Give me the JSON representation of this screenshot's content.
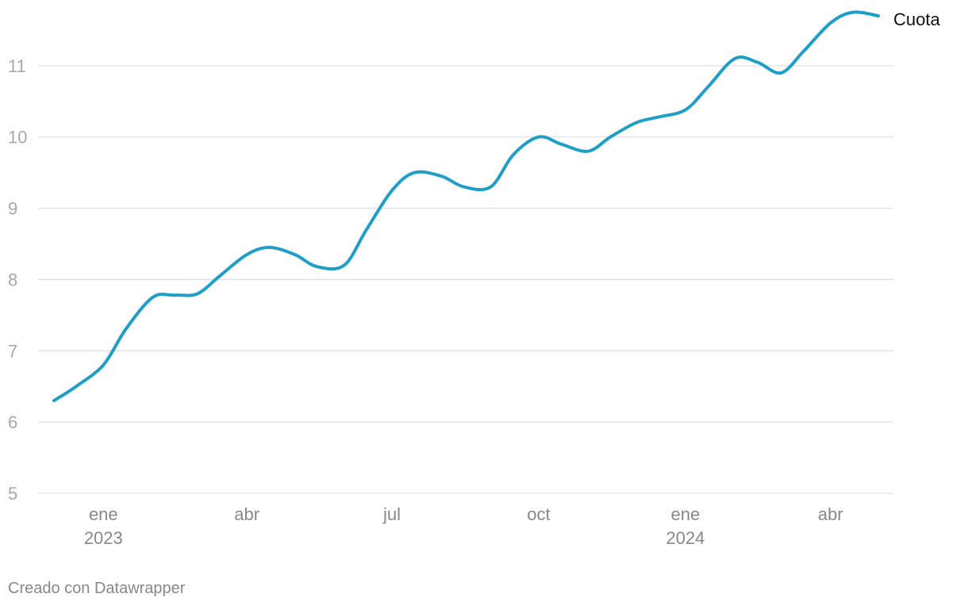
{
  "chart_data": {
    "type": "line",
    "x": [
      "2022-12-01",
      "2022-12-15",
      "2023-01-01",
      "2023-01-15",
      "2023-02-01",
      "2023-02-15",
      "2023-03-01",
      "2023-03-15",
      "2023-04-01",
      "2023-04-15",
      "2023-05-01",
      "2023-05-15",
      "2023-06-01",
      "2023-06-15",
      "2023-07-01",
      "2023-07-15",
      "2023-08-01",
      "2023-08-15",
      "2023-09-01",
      "2023-09-15",
      "2023-10-01",
      "2023-10-15",
      "2023-11-01",
      "2023-11-15",
      "2023-12-01",
      "2023-12-15",
      "2024-01-01",
      "2024-01-15",
      "2024-02-01",
      "2024-02-15",
      "2024-03-01",
      "2024-03-15",
      "2024-04-01",
      "2024-04-15",
      "2024-05-01"
    ],
    "series": [
      {
        "name": "Cuota",
        "values": [
          6.3,
          6.5,
          6.8,
          7.3,
          7.75,
          7.78,
          7.8,
          8.05,
          8.35,
          8.45,
          8.35,
          8.18,
          8.2,
          8.7,
          9.25,
          9.5,
          9.45,
          9.3,
          9.3,
          9.75,
          10.0,
          9.9,
          9.8,
          10.0,
          10.2,
          10.28,
          10.38,
          10.7,
          11.1,
          11.05,
          10.9,
          11.2,
          11.6,
          11.75,
          11.7
        ]
      }
    ],
    "ylim": [
      5,
      11.7
    ],
    "yticks": [
      5,
      6,
      7,
      8,
      9,
      10,
      11
    ],
    "xticks": [
      {
        "date": "2023-01-01",
        "label": "ene",
        "year": "2023"
      },
      {
        "date": "2023-04-01",
        "label": "abr",
        "year": ""
      },
      {
        "date": "2023-07-01",
        "label": "jul",
        "year": ""
      },
      {
        "date": "2023-10-01",
        "label": "oct",
        "year": ""
      },
      {
        "date": "2024-01-01",
        "label": "ene",
        "year": "2024"
      },
      {
        "date": "2024-04-01",
        "label": "abr",
        "year": ""
      }
    ],
    "grid": true,
    "line_color": "#1f9fc8",
    "label_color": "#111111"
  },
  "footer": {
    "credit": "Creado con Datawrapper"
  }
}
